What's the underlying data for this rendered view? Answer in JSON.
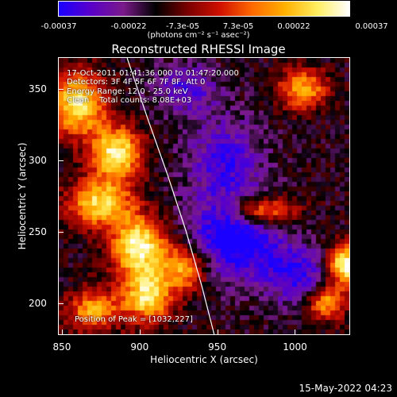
{
  "colorbar": {
    "ticks": [
      "-0.00037",
      "-0.00022",
      "-7.3e-05",
      "7.3e-05",
      "0.00022",
      "0.00037"
    ],
    "unit": "(photons cm⁻² s⁻¹ asec⁻²)",
    "colors": [
      "#1a00ff",
      "#5a00c8",
      "#7a1a8a",
      "#000000",
      "#7a0000",
      "#d01000",
      "#ff6a00",
      "#ffb000",
      "#ffee60",
      "#ffffff"
    ]
  },
  "annotations": {
    "time": "17-Oct-2011 01:41:36.000 to 01:47:20.000",
    "detectors": "Detectors: 3F 4F 5F 6F 7F 8F, Att 0",
    "energy": "Energy Range: 12.0 - 25.0 keV",
    "clean": "Clean    Total counts: 8.08E+03",
    "peak": "Position of Peak = [1032,227]"
  },
  "timestamp": "15-May-2022 04:23",
  "chart_data": {
    "type": "heatmap",
    "title": "Reconstructed RHESSI Image",
    "xlabel": "Heliocentric X (arcsec)",
    "ylabel": "Heliocentric Y (arcsec)",
    "xlim": [
      848,
      1035
    ],
    "ylim": [
      178,
      372
    ],
    "xticks": [
      850,
      900,
      950,
      1000
    ],
    "yticks": [
      200,
      250,
      300,
      350
    ],
    "xtick_labels": [
      "850",
      "900",
      "950",
      "1000"
    ],
    "ytick_labels": [
      "200",
      "250",
      "300",
      "350"
    ],
    "zlim": [
      -0.00037,
      0.00037
    ],
    "peak": [
      1032,
      227
    ],
    "limb": [
      [
        892,
        372
      ],
      [
        905,
        330
      ],
      [
        918,
        290
      ],
      [
        930,
        250
      ],
      [
        940,
        212
      ],
      [
        948,
        178
      ]
    ],
    "hot_regions": [
      {
        "x": 860,
        "y": 340,
        "amp": 0.0003,
        "rx": 18,
        "ry": 22
      },
      {
        "x": 885,
        "y": 305,
        "amp": 0.00033,
        "rx": 16,
        "ry": 18
      },
      {
        "x": 875,
        "y": 270,
        "amp": 0.00028,
        "rx": 20,
        "ry": 16
      },
      {
        "x": 900,
        "y": 240,
        "amp": 0.00034,
        "rx": 18,
        "ry": 20
      },
      {
        "x": 905,
        "y": 205,
        "amp": 0.0003,
        "rx": 16,
        "ry": 18
      },
      {
        "x": 930,
        "y": 225,
        "amp": 0.00022,
        "rx": 14,
        "ry": 16
      },
      {
        "x": 870,
        "y": 195,
        "amp": 0.0002,
        "rx": 16,
        "ry": 14
      },
      {
        "x": 980,
        "y": 265,
        "amp": 0.00022,
        "rx": 20,
        "ry": 10
      },
      {
        "x": 1032,
        "y": 227,
        "amp": 0.00037,
        "rx": 10,
        "ry": 14
      },
      {
        "x": 1005,
        "y": 350,
        "amp": 0.0002,
        "rx": 16,
        "ry": 14
      },
      {
        "x": 1020,
        "y": 200,
        "amp": 0.0002,
        "rx": 12,
        "ry": 12
      }
    ],
    "cold_regions": [
      {
        "x": 960,
        "y": 245,
        "amp": -0.0003,
        "rx": 30,
        "ry": 28
      },
      {
        "x": 955,
        "y": 300,
        "amp": -0.0002,
        "rx": 24,
        "ry": 30
      },
      {
        "x": 1000,
        "y": 220,
        "amp": -0.00022,
        "rx": 20,
        "ry": 20
      },
      {
        "x": 930,
        "y": 350,
        "amp": -0.00018,
        "rx": 20,
        "ry": 18
      }
    ]
  }
}
